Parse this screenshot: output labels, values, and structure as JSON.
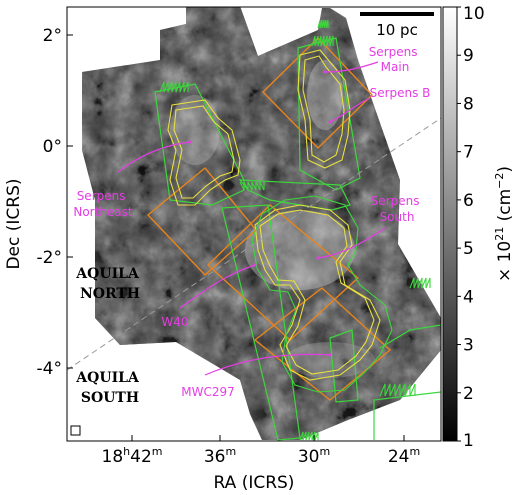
{
  "chart_data": {
    "type": "heatmap",
    "xlabel": "RA (ICRS)",
    "ylabel": "Dec (ICRS)",
    "x_ticks": [
      {
        "h": "18",
        "m": "42",
        "label": "18h42m"
      },
      {
        "h": "",
        "m": "36",
        "label": "36m"
      },
      {
        "h": "",
        "m": "30",
        "label": "30m"
      },
      {
        "h": "",
        "m": "24",
        "label": "24m"
      }
    ],
    "y_ticks": [
      {
        "value": 2,
        "label": "2°"
      },
      {
        "value": 0,
        "label": "0°"
      },
      {
        "value": -2,
        "label": "-2°"
      },
      {
        "value": -4,
        "label": "-4°"
      }
    ],
    "ylim": [
      -5.2,
      2.7
    ],
    "colorbar": {
      "label": "× 10²¹ (cm⁻²)",
      "label_parts": {
        "pre": "× 10",
        "exp": "21",
        "mid": " (cm",
        "exp2": "−2",
        "post": ")"
      },
      "range": [
        1,
        10
      ],
      "ticks": [
        "1",
        "2",
        "3",
        "4",
        "5",
        "6",
        "7",
        "8",
        "9",
        "10"
      ],
      "colormap": "grayscale"
    },
    "scale_bar": {
      "label": "10 pc"
    },
    "divider_line": {
      "style": "dashed",
      "color": "#9a9a9a"
    },
    "regions": [
      {
        "name": "AQUILA NORTH",
        "lines": [
          "AQUILA",
          "NORTH"
        ]
      },
      {
        "name": "AQUILA SOUTH",
        "lines": [
          "AQUILA",
          "SOUTH"
        ]
      }
    ],
    "annotations": [
      {
        "lines": [
          "Serpens",
          "Main"
        ]
      },
      {
        "lines": [
          "Serpens B"
        ]
      },
      {
        "lines": [
          "Serpens",
          "Northeast"
        ]
      },
      {
        "lines": [
          "Serpens",
          "South"
        ]
      },
      {
        "lines": [
          "W40"
        ]
      },
      {
        "lines": [
          "MWC297"
        ]
      }
    ],
    "overlay_colors": {
      "green": "#3dd63d",
      "orange": "#e8841c",
      "yellow": "#e8e040",
      "magenta": "#e43ee4"
    }
  }
}
